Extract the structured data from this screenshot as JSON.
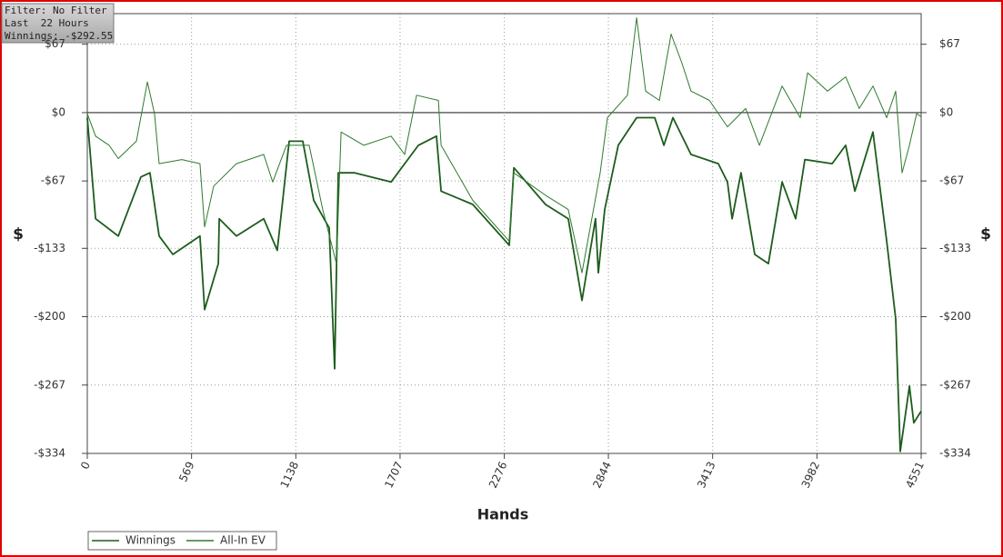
{
  "chart_data": {
    "type": "line",
    "info": [
      "Filter: No Filter",
      "Last  22 Hours",
      "Winnings: -$292.55"
    ],
    "xlabel": "Hands",
    "ylabel": "$",
    "y2label": "$",
    "xlim": [
      0,
      4551
    ],
    "xticks": [
      0,
      569,
      1138,
      1707,
      2276,
      2844,
      3413,
      3982,
      4551
    ],
    "ylim": [
      -334,
      97
    ],
    "yticks": [
      {
        "value": 67,
        "label": "$67"
      },
      {
        "value": 0,
        "label": "$0"
      },
      {
        "value": -67,
        "label": "-$67"
      },
      {
        "value": -133,
        "label": "-$133"
      },
      {
        "value": -200,
        "label": "-$200"
      },
      {
        "value": -267,
        "label": "-$267"
      },
      {
        "value": -334,
        "label": "-$334"
      }
    ],
    "grid": true,
    "series": [
      {
        "name": "Winnings",
        "color": "#1d5c1d",
        "x": [
          0,
          45,
          169,
          293,
          342,
          392,
          467,
          615,
          640,
          715,
          720,
          814,
          963,
          1037,
          1102,
          1176,
          1236,
          1320,
          1350,
          1370,
          1459,
          1658,
          1807,
          1906,
          1931,
          2104,
          2303,
          2328,
          2501,
          2625,
          2700,
          2774,
          2789,
          2824,
          2898,
          2998,
          3097,
          3147,
          3196,
          3295,
          3444,
          3494,
          3519,
          3568,
          3643,
          3717,
          3792,
          3866,
          3916,
          4065,
          4139,
          4189,
          4288,
          4363,
          4412,
          4437,
          4487,
          4511,
          4551
        ],
        "values": [
          -5,
          -104,
          -121,
          -63,
          -59,
          -121,
          -139,
          -121,
          -193,
          -148,
          -104,
          -121,
          -104,
          -135,
          -28,
          -28,
          -86,
          -113,
          -251,
          -59,
          -59,
          -68,
          -32,
          -23,
          -77,
          -90,
          -130,
          -54,
          -90,
          -104,
          -184,
          -104,
          -157,
          -95,
          -32,
          -5,
          -5,
          -32,
          -5,
          -41,
          -50,
          -68,
          -104,
          -59,
          -139,
          -148,
          -68,
          -104,
          -46,
          -50,
          -32,
          -77,
          -19,
          -126,
          -202,
          -332,
          -268,
          -304,
          -292.55
        ]
      },
      {
        "name": "All-In EV",
        "color": "#2f7a2f",
        "x": [
          0,
          45,
          119,
          169,
          268,
          328,
          367,
          392,
          516,
          615,
          640,
          690,
          814,
          963,
          1012,
          1087,
          1211,
          1285,
          1360,
          1385,
          1509,
          1658,
          1732,
          1797,
          1916,
          1931,
          2104,
          2303,
          2328,
          2501,
          2625,
          2700,
          2799,
          2839,
          2948,
          2998,
          3047,
          3122,
          3186,
          3246,
          3295,
          3395,
          3494,
          3593,
          3668,
          3792,
          3891,
          3931,
          4040,
          4139,
          4213,
          4288,
          4363,
          4412,
          4447,
          4487,
          4526,
          4551
        ],
        "values": [
          -1,
          -23,
          -32,
          -45,
          -28,
          30,
          -1,
          -50,
          -46,
          -50,
          -112,
          -72,
          -50,
          -41,
          -68,
          -32,
          -32,
          -95,
          -148,
          -19,
          -32,
          -23,
          -41,
          17,
          12,
          -32,
          -86,
          -126,
          -59,
          -81,
          -95,
          -157,
          -59,
          -5,
          17,
          93,
          21,
          12,
          77,
          48,
          21,
          12,
          -14,
          4,
          -32,
          26,
          -5,
          39,
          21,
          35,
          4,
          26,
          -5,
          21,
          -59,
          -32,
          -1,
          -4
        ]
      }
    ]
  }
}
